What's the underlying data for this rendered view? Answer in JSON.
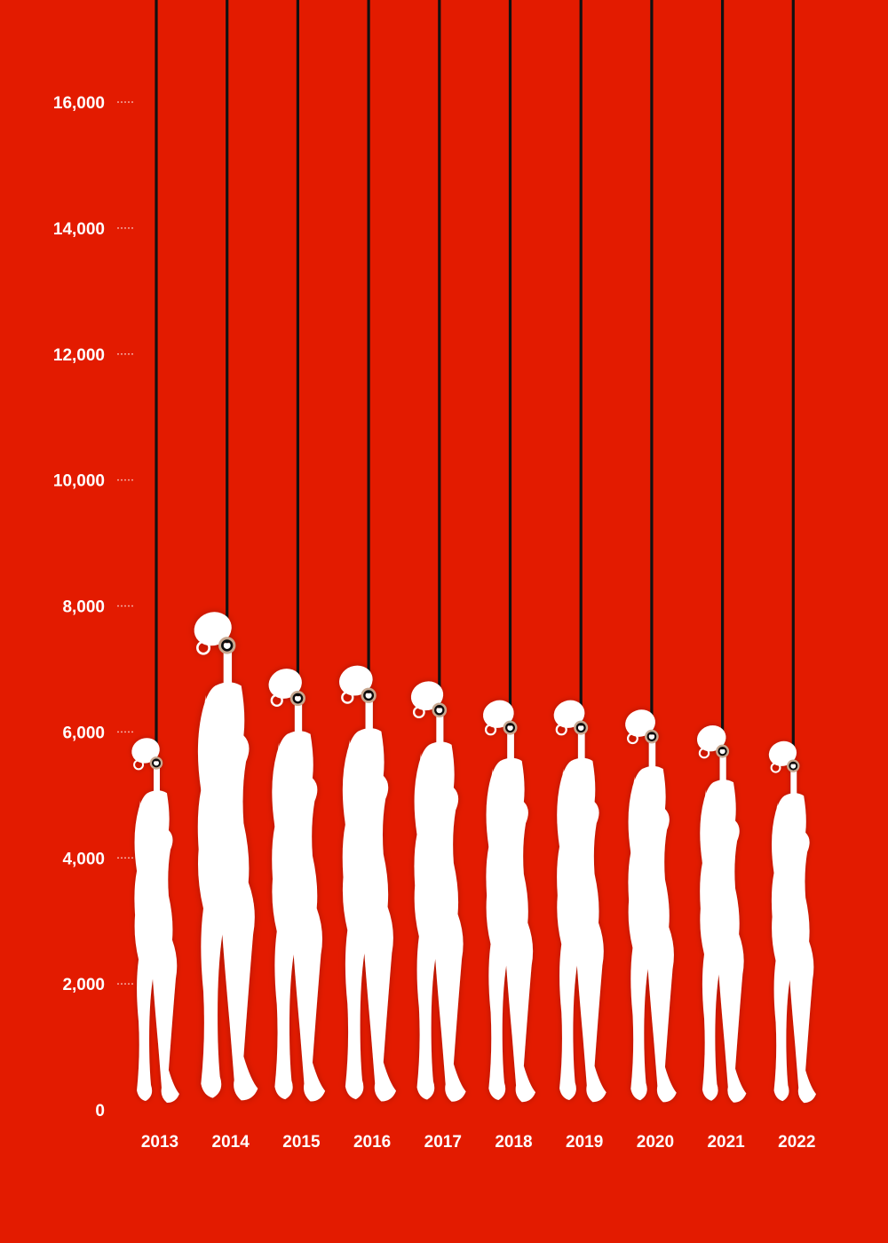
{
  "chart_data": {
    "type": "bar",
    "title": "",
    "xlabel": "",
    "ylabel": "",
    "ylim": [
      0,
      16000
    ],
    "yticks": [
      "0",
      "2,000",
      "4,000",
      "6,000",
      "8,000",
      "10,000",
      "12,000",
      "14,000",
      "16,000"
    ],
    "ytick_values": [
      0,
      2000,
      4000,
      6000,
      8000,
      10000,
      12000,
      14000,
      16000
    ],
    "categories": [
      "2013",
      "2014",
      "2015",
      "2016",
      "2017",
      "2018",
      "2019",
      "2020",
      "2021",
      "2022"
    ],
    "values": [
      5900,
      7900,
      7000,
      7050,
      6800,
      6500,
      6500,
      6350,
      6100,
      5850
    ],
    "grid": false,
    "legend": "none",
    "mark_style": "hanging-figure-silhouette"
  },
  "colors": {
    "background": "#e31b00",
    "figure": "#ffffff",
    "rope": "#111111",
    "noose": "#c8a890",
    "text": "#ffffff",
    "tick_dash": "#f3a89c"
  }
}
